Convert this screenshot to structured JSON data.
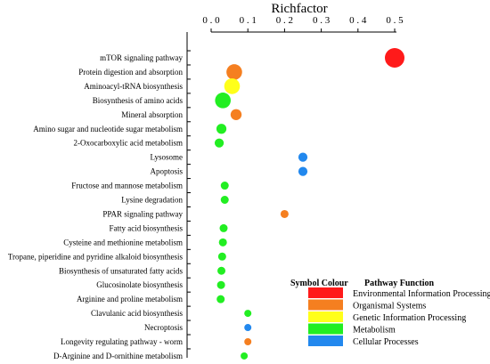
{
  "chart_data": {
    "type": "scatter",
    "xlabel": "Richfactor",
    "xlim": [
      0,
      0.5
    ],
    "xticks": [
      {
        "value": 0.0,
        "label": "0 . 0"
      },
      {
        "value": 0.1,
        "label": "0 . 1"
      },
      {
        "value": 0.2,
        "label": "0 . 2"
      },
      {
        "value": 0.3,
        "label": "0 . 3"
      },
      {
        "value": 0.4,
        "label": "0 . 4"
      },
      {
        "value": 0.5,
        "label": "0 . 5"
      }
    ],
    "points": [
      {
        "pathway": "mTOR signaling pathway",
        "richfactor": 0.5,
        "function": "Environmental Information Processing",
        "relative_size": 1.0
      },
      {
        "pathway": "Protein digestion and absorption",
        "richfactor": 0.063,
        "function": "Organismal Systems",
        "relative_size": 0.8
      },
      {
        "pathway": "Aminoacyl-tRNA biosynthesis",
        "richfactor": 0.057,
        "function": "Genetic Information Processing",
        "relative_size": 0.8
      },
      {
        "pathway": "Biosynthesis of amino acids",
        "richfactor": 0.032,
        "function": "Metabolism",
        "relative_size": 0.8
      },
      {
        "pathway": "Mineral absorption",
        "richfactor": 0.068,
        "function": "Organismal Systems",
        "relative_size": 0.55
      },
      {
        "pathway": "Amino sugar and nucleotide sugar metabolism",
        "richfactor": 0.028,
        "function": "Metabolism",
        "relative_size": 0.5
      },
      {
        "pathway": "2-Oxocarboxylic acid metabolism",
        "richfactor": 0.022,
        "function": "Metabolism",
        "relative_size": 0.45
      },
      {
        "pathway": "Lysosome",
        "richfactor": 0.25,
        "function": "Cellular Processes",
        "relative_size": 0.45
      },
      {
        "pathway": "Apoptosis",
        "richfactor": 0.25,
        "function": "Cellular Processes",
        "relative_size": 0.45
      },
      {
        "pathway": "Fructose and mannose metabolism",
        "richfactor": 0.037,
        "function": "Metabolism",
        "relative_size": 0.4
      },
      {
        "pathway": "Lysine degradation",
        "richfactor": 0.037,
        "function": "Metabolism",
        "relative_size": 0.4
      },
      {
        "pathway": "PPAR signaling pathway",
        "richfactor": 0.2,
        "function": "Organismal Systems",
        "relative_size": 0.4
      },
      {
        "pathway": "Fatty acid biosynthesis",
        "richfactor": 0.034,
        "function": "Metabolism",
        "relative_size": 0.4
      },
      {
        "pathway": "Cysteine and methionine metabolism",
        "richfactor": 0.032,
        "function": "Metabolism",
        "relative_size": 0.4
      },
      {
        "pathway": "Tropane, piperidine and pyridine alkaloid biosynthesis",
        "richfactor": 0.03,
        "function": "Metabolism",
        "relative_size": 0.4
      },
      {
        "pathway": "Biosynthesis of unsaturated fatty acids",
        "richfactor": 0.028,
        "function": "Metabolism",
        "relative_size": 0.4
      },
      {
        "pathway": "Glucosinolate biosynthesis",
        "richfactor": 0.027,
        "function": "Metabolism",
        "relative_size": 0.4
      },
      {
        "pathway": "Arginine and proline metabolism",
        "richfactor": 0.026,
        "function": "Metabolism",
        "relative_size": 0.4
      },
      {
        "pathway": "Clavulanic acid biosynthesis",
        "richfactor": 0.1,
        "function": "Metabolism",
        "relative_size": 0.35
      },
      {
        "pathway": "Necroptosis",
        "richfactor": 0.1,
        "function": "Cellular Processes",
        "relative_size": 0.35
      },
      {
        "pathway": "Longevity regulating pathway - worm",
        "richfactor": 0.1,
        "function": "Organismal Systems",
        "relative_size": 0.35
      },
      {
        "pathway": "D-Arginine and D-ornithine metabolism",
        "richfactor": 0.09,
        "function": "Metabolism",
        "relative_size": 0.35
      }
    ],
    "legend": {
      "placement": "bottom-right",
      "header_symbol": "Symbol Colour",
      "header_function": "Pathway Function",
      "entries": [
        {
          "label": "Environmental Information Processing",
          "color": "#ff1a1a"
        },
        {
          "label": "Organismal Systems",
          "color": "#f57f20"
        },
        {
          "label": "Genetic Information Processing",
          "color": "#ffff1a"
        },
        {
          "label": "Metabolism",
          "color": "#22ee22"
        },
        {
          "label": "Cellular Processes",
          "color": "#2288ee"
        }
      ]
    }
  }
}
